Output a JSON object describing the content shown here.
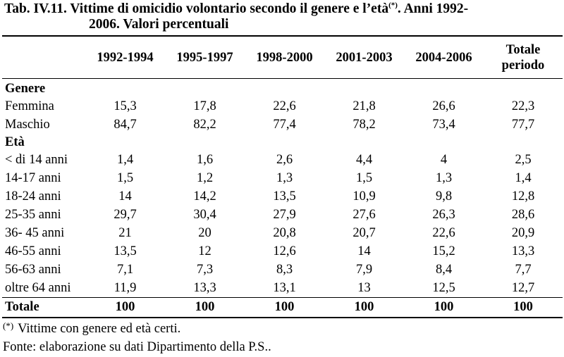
{
  "title": {
    "line1_main": "Tab. IV.11. Vittime di omicidio volontario secondo il genere e l’età",
    "line1_sup": "(*)",
    "line1_end": ". Anni 1992-",
    "line2": "2006. Valori percentuali"
  },
  "table": {
    "headers": [
      "1992-1994",
      "1995-1997",
      "1998-2000",
      "2001-2003",
      "2004-2006"
    ],
    "header_total_line1": "Totale",
    "header_total_line2": "periodo",
    "sections": [
      {
        "label": "Genere",
        "rows": [
          {
            "label": "Femmina",
            "values": [
              "15,3",
              "17,8",
              "22,6",
              "21,8",
              "26,6",
              "22,3"
            ]
          },
          {
            "label": "Maschio",
            "values": [
              "84,7",
              "82,2",
              "77,4",
              "78,2",
              "73,4",
              "77,7"
            ]
          }
        ]
      },
      {
        "label": "Età",
        "rows": [
          {
            "label": "< di 14 anni",
            "values": [
              "1,4",
              "1,6",
              "2,6",
              "4,4",
              "4",
              "2,5"
            ]
          },
          {
            "label": "14-17 anni",
            "values": [
              "1,5",
              "1,2",
              "1,3",
              "1,5",
              "1,3",
              "1,4"
            ]
          },
          {
            "label": "18-24 anni",
            "values": [
              "14",
              "14,2",
              "13,5",
              "10,9",
              "9,8",
              "12,8"
            ]
          },
          {
            "label": "25-35 anni",
            "values": [
              "29,7",
              "30,4",
              "27,9",
              "27,6",
              "26,3",
              "28,6"
            ]
          },
          {
            "label": "36- 45 anni",
            "values": [
              "21",
              "20",
              "20,8",
              "20,7",
              "22,6",
              "20,9"
            ]
          },
          {
            "label": "46-55 anni",
            "values": [
              "13,5",
              "12",
              "12,6",
              "14",
              "15,2",
              "13,3"
            ]
          },
          {
            "label": "56-63 anni",
            "values": [
              "7,1",
              "7,3",
              "8,3",
              "7,9",
              "8,4",
              "7,7"
            ]
          },
          {
            "label": "oltre 64 anni",
            "values": [
              "11,9",
              "13,3",
              "13,1",
              "13",
              "12,5",
              "12,7"
            ]
          }
        ]
      }
    ],
    "total": {
      "label": "Totale",
      "values": [
        "100",
        "100",
        "100",
        "100",
        "100",
        "100"
      ]
    }
  },
  "note": {
    "mark": "(*)",
    "text": "Vittime con genere ed età certi."
  },
  "source": "Fonte: elaborazione su dati Dipartimento della P.S.."
}
